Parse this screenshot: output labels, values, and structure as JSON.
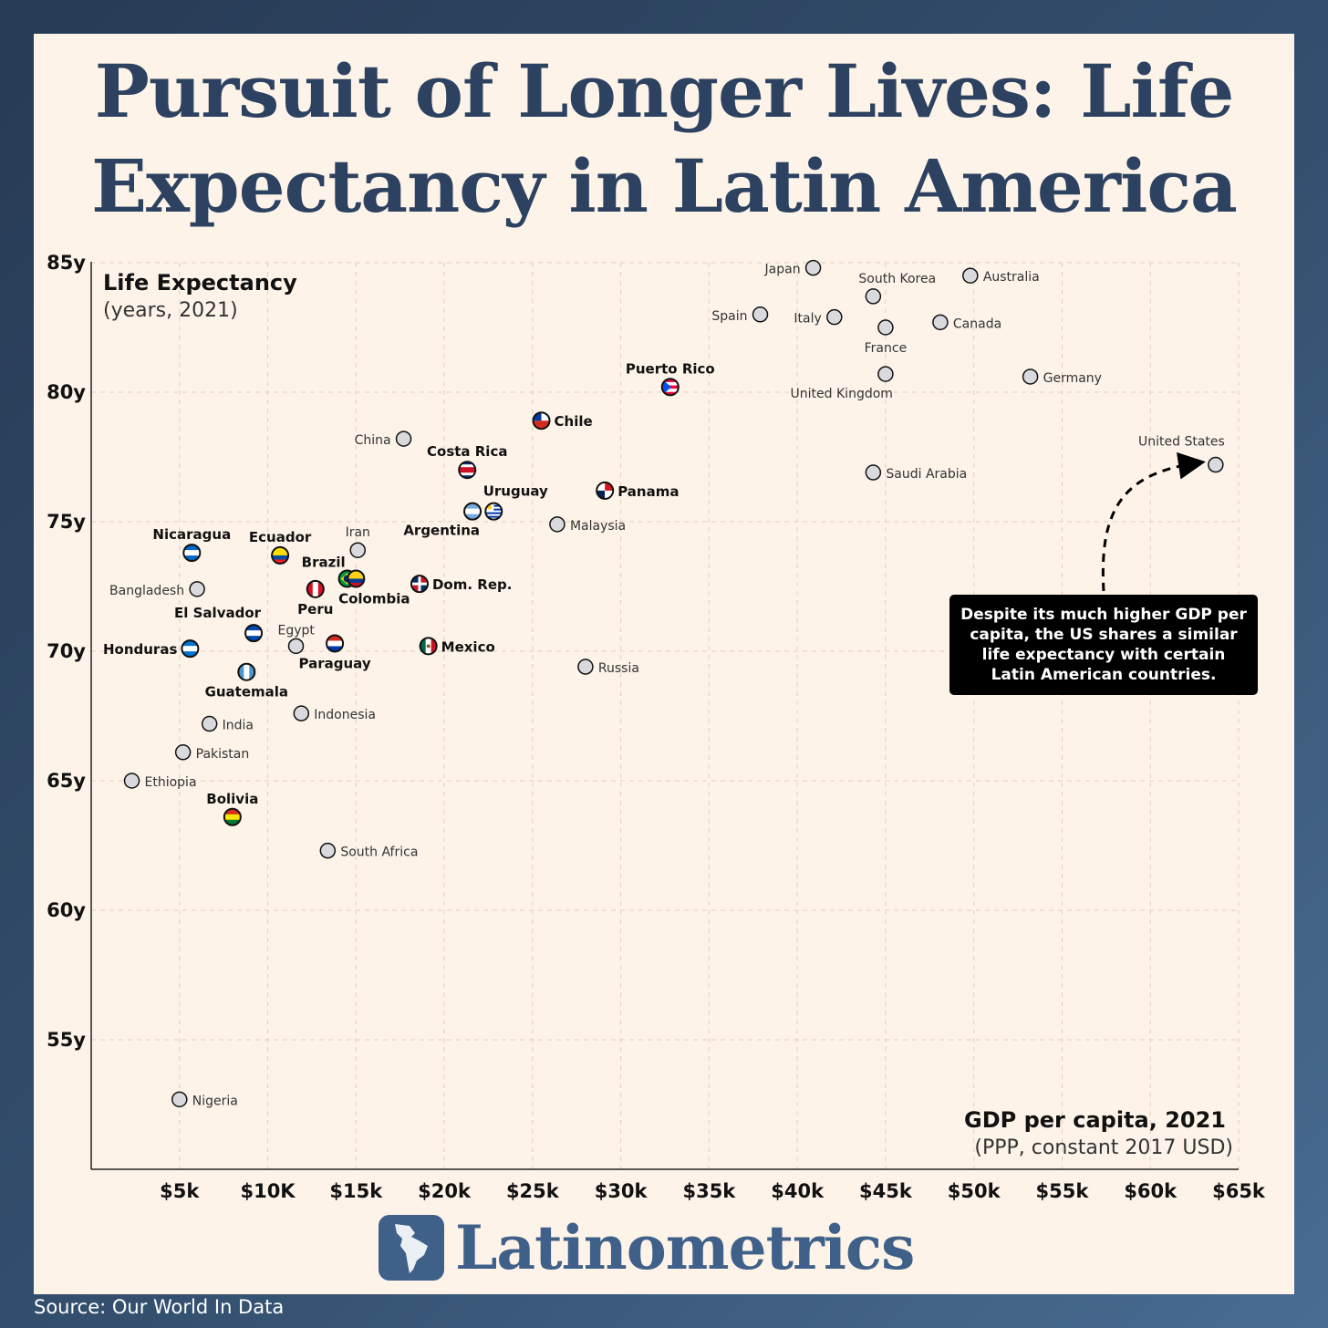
{
  "title": "Pursuit of Longer Lives: Life Expectancy in Latin America",
  "chart_data": {
    "type": "scatter",
    "y_title": "Life Expectancy",
    "y_subtitle": "(years, 2021)",
    "x_title": "GDP per capita, 2021",
    "x_subtitle": "(PPP, constant 2017 USD)",
    "xlim": [
      0,
      65000
    ],
    "ylim": [
      50,
      85
    ],
    "grid": true,
    "x_ticks": [
      {
        "value": 5000,
        "label": "$5k"
      },
      {
        "value": 10000,
        "label": "$10K"
      },
      {
        "value": 15000,
        "label": "$15k"
      },
      {
        "value": 20000,
        "label": "$20k"
      },
      {
        "value": 25000,
        "label": "$25k"
      },
      {
        "value": 30000,
        "label": "$30k"
      },
      {
        "value": 35000,
        "label": "$35k"
      },
      {
        "value": 40000,
        "label": "$40k"
      },
      {
        "value": 45000,
        "label": "$45k"
      },
      {
        "value": 50000,
        "label": "$50k"
      },
      {
        "value": 55000,
        "label": "$55k"
      },
      {
        "value": 60000,
        "label": "$60k"
      },
      {
        "value": 65000,
        "label": "$65k"
      }
    ],
    "y_ticks": [
      {
        "value": 55,
        "label": "55y"
      },
      {
        "value": 60,
        "label": "60y"
      },
      {
        "value": 65,
        "label": "65y"
      },
      {
        "value": 70,
        "label": "70y"
      },
      {
        "value": 75,
        "label": "75y"
      },
      {
        "value": 80,
        "label": "80y"
      },
      {
        "value": 85,
        "label": "85y"
      }
    ],
    "points": [
      {
        "name": "Puerto Rico",
        "x": 32800,
        "y": 80.2,
        "latam": true,
        "flag": "PR",
        "label": "above"
      },
      {
        "name": "Chile",
        "x": 25500,
        "y": 78.9,
        "latam": true,
        "flag": "CL",
        "label": "right"
      },
      {
        "name": "Costa Rica",
        "x": 21300,
        "y": 77.0,
        "latam": true,
        "flag": "CR",
        "label": "above"
      },
      {
        "name": "Panama",
        "x": 29100,
        "y": 76.2,
        "latam": true,
        "flag": "PA",
        "label": "right"
      },
      {
        "name": "Uruguay",
        "x": 22800,
        "y": 75.4,
        "latam": true,
        "flag": "UY",
        "label": "above"
      },
      {
        "name": "Argentina",
        "x": 21600,
        "y": 75.4,
        "latam": true,
        "flag": "AR",
        "label": "below-left"
      },
      {
        "name": "Nicaragua",
        "x": 5700,
        "y": 73.8,
        "latam": true,
        "flag": "NI",
        "label": "above"
      },
      {
        "name": "Ecuador",
        "x": 10700,
        "y": 73.7,
        "latam": true,
        "flag": "EC",
        "label": "above"
      },
      {
        "name": "Brazil",
        "x": 14500,
        "y": 72.8,
        "latam": true,
        "flag": "BR",
        "label": "above-left"
      },
      {
        "name": "Colombia",
        "x": 15000,
        "y": 72.8,
        "latam": true,
        "flag": "CO",
        "label": "below"
      },
      {
        "name": "Peru",
        "x": 12700,
        "y": 72.4,
        "latam": true,
        "flag": "PE",
        "label": "below"
      },
      {
        "name": "Dom. Rep.",
        "x": 18600,
        "y": 72.6,
        "latam": true,
        "flag": "DO",
        "label": "right"
      },
      {
        "name": "El Salvador",
        "x": 9200,
        "y": 70.7,
        "latam": true,
        "flag": "SV",
        "label": "above-left"
      },
      {
        "name": "Honduras",
        "x": 5600,
        "y": 70.1,
        "latam": true,
        "flag": "HN",
        "label": "left"
      },
      {
        "name": "Paraguay",
        "x": 13800,
        "y": 70.3,
        "latam": true,
        "flag": "PY",
        "label": "below"
      },
      {
        "name": "Mexico",
        "x": 19100,
        "y": 70.2,
        "latam": true,
        "flag": "MX",
        "label": "right"
      },
      {
        "name": "Guatemala",
        "x": 8800,
        "y": 69.2,
        "latam": true,
        "flag": "GT",
        "label": "below"
      },
      {
        "name": "Bolivia",
        "x": 8000,
        "y": 63.6,
        "latam": true,
        "flag": "BO",
        "label": "above"
      },
      {
        "name": "Japan",
        "x": 40900,
        "y": 84.8,
        "latam": false,
        "label": "left"
      },
      {
        "name": "Australia",
        "x": 49800,
        "y": 84.5,
        "latam": false,
        "label": "right"
      },
      {
        "name": "South Korea",
        "x": 44300,
        "y": 83.7,
        "latam": false,
        "label": "above-right"
      },
      {
        "name": "Spain",
        "x": 37900,
        "y": 83.0,
        "latam": false,
        "label": "left"
      },
      {
        "name": "Italy",
        "x": 42100,
        "y": 82.9,
        "latam": false,
        "label": "left"
      },
      {
        "name": "France",
        "x": 45000,
        "y": 82.5,
        "latam": false,
        "label": "below"
      },
      {
        "name": "Canada",
        "x": 48100,
        "y": 82.7,
        "latam": false,
        "label": "right"
      },
      {
        "name": "United Kingdom",
        "x": 45000,
        "y": 80.7,
        "latam": false,
        "label": "below-left"
      },
      {
        "name": "Germany",
        "x": 53200,
        "y": 80.6,
        "latam": false,
        "label": "right"
      },
      {
        "name": "United States",
        "x": 63700,
        "y": 77.2,
        "latam": false,
        "label": "above-left"
      },
      {
        "name": "Saudi Arabia",
        "x": 44300,
        "y": 76.9,
        "latam": false,
        "label": "right"
      },
      {
        "name": "China",
        "x": 17700,
        "y": 78.2,
        "latam": false,
        "label": "left"
      },
      {
        "name": "Malaysia",
        "x": 26400,
        "y": 74.9,
        "latam": false,
        "label": "right"
      },
      {
        "name": "Iran",
        "x": 15100,
        "y": 73.9,
        "latam": false,
        "label": "above"
      },
      {
        "name": "Bangladesh",
        "x": 6000,
        "y": 72.4,
        "latam": false,
        "label": "left"
      },
      {
        "name": "Egypt",
        "x": 11600,
        "y": 70.2,
        "latam": false,
        "label": "above-right"
      },
      {
        "name": "Russia",
        "x": 28000,
        "y": 69.4,
        "latam": false,
        "label": "right"
      },
      {
        "name": "Indonesia",
        "x": 11900,
        "y": 67.6,
        "latam": false,
        "label": "right"
      },
      {
        "name": "India",
        "x": 6700,
        "y": 67.2,
        "latam": false,
        "label": "right"
      },
      {
        "name": "Pakistan",
        "x": 5200,
        "y": 66.1,
        "latam": false,
        "label": "right"
      },
      {
        "name": "Ethiopia",
        "x": 2300,
        "y": 65.0,
        "latam": false,
        "label": "right"
      },
      {
        "name": "South Africa",
        "x": 13400,
        "y": 62.3,
        "latam": false,
        "label": "right"
      },
      {
        "name": "Nigeria",
        "x": 5000,
        "y": 52.7,
        "latam": false,
        "label": "right"
      }
    ],
    "annotation": "Despite its much higher GDP per capita, the US shares a similar life expectancy with certain Latin American countries."
  },
  "brand": "Latinometrics",
  "source": "Source: Our World In Data",
  "colors": {
    "background": "#fdf3e9",
    "title": "#2c4260",
    "brand": "#3f6088",
    "grid": "#e3cfc0",
    "point_fill": "#d9d9de"
  }
}
